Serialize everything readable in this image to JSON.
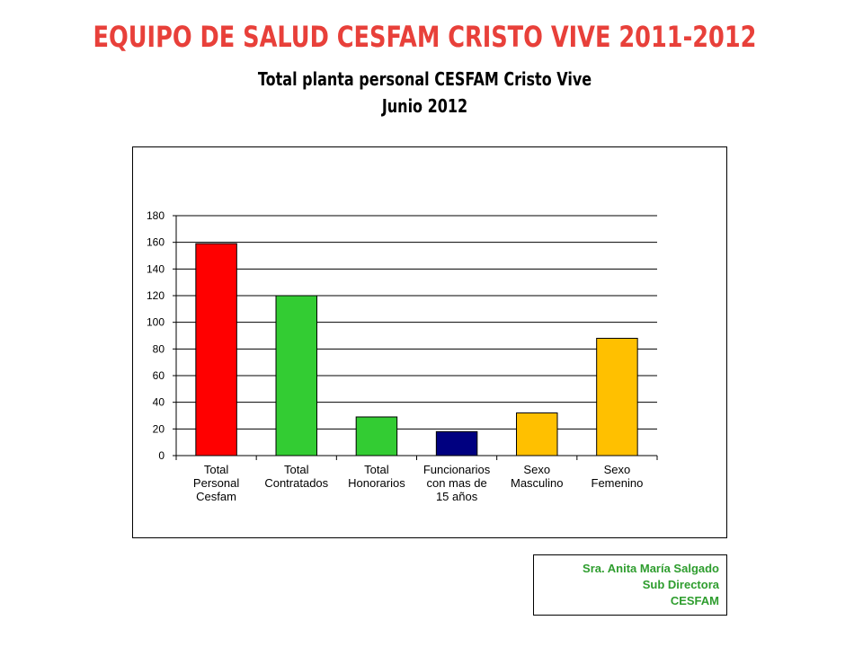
{
  "header": {
    "title": "EQUIPO DE SALUD CESFAM CRISTO VIVE 2011-2012",
    "subtitle_line1": "Total planta personal CESFAM  Cristo Vive",
    "subtitle_line2": "Junio 2012"
  },
  "signature": {
    "name": "Sra. Anita María Salgado",
    "role": "Sub Directora",
    "org": "CESFAM"
  },
  "chart_data": {
    "type": "bar",
    "categories": [
      [
        "Total",
        "Personal",
        "Cesfam"
      ],
      [
        "Total",
        "Contratados"
      ],
      [
        "Total",
        "Honorarios"
      ],
      [
        "Funcionarios",
        "con mas de",
        "15 años"
      ],
      [
        "Sexo",
        "Masculino"
      ],
      [
        "Sexo",
        "Femenino"
      ]
    ],
    "values": [
      159,
      120,
      29,
      18,
      32,
      88
    ],
    "colors": [
      "#ff0000",
      "#33cc33",
      "#33cc33",
      "#000080",
      "#ffc000",
      "#ffc000"
    ],
    "ylim": [
      0,
      180
    ],
    "yticks": [
      0,
      20,
      40,
      60,
      80,
      100,
      120,
      140,
      160,
      180
    ],
    "grid": true,
    "legend": "none"
  }
}
